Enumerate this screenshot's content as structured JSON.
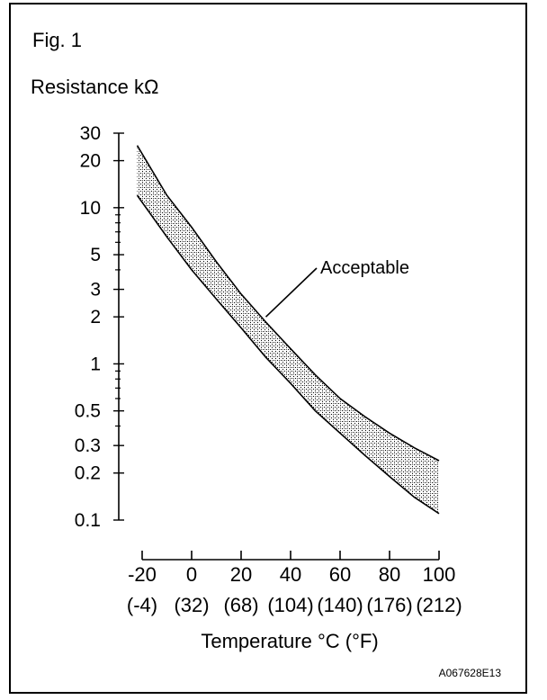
{
  "chart_data": {
    "type": "area",
    "fig_label": "Fig. 1",
    "ylabel": "Resistance kΩ",
    "xlabel": "Temperature °C (°F)",
    "yscale": "log",
    "ylim": [
      0.1,
      30
    ],
    "xlim": [
      -20,
      100
    ],
    "y_ticks": [
      30,
      20,
      10,
      5,
      3,
      2,
      1,
      0.5,
      0.3,
      0.2,
      0.1
    ],
    "y_tick_labels": [
      "30",
      "20",
      "10",
      "5",
      "3",
      "2",
      "1",
      "0.5",
      "0.3",
      "0.2",
      "0.1"
    ],
    "y_minor_ticks": [
      0.4,
      0.6,
      0.7,
      0.8,
      0.9,
      4,
      6,
      7,
      8,
      9
    ],
    "x_ticks": [
      -20,
      0,
      20,
      40,
      60,
      80,
      100
    ],
    "x_tick_labels": [
      "-20",
      "0",
      "20",
      "40",
      "60",
      "80",
      "100"
    ],
    "x_tick_labels_f": [
      "(-4)",
      "(32)",
      "(68)",
      "(104)",
      "(140)",
      "(176)",
      "(212)"
    ],
    "band_label": "Acceptable",
    "band_label_point": [
      30,
      2.0
    ],
    "series": [
      {
        "role": "upper",
        "x": [
          -22,
          -10,
          0,
          10,
          20,
          30,
          40,
          50,
          60,
          70,
          80,
          90,
          100
        ],
        "y": [
          25,
          12,
          7.5,
          4.5,
          2.8,
          1.85,
          1.25,
          0.85,
          0.6,
          0.46,
          0.36,
          0.29,
          0.24
        ]
      },
      {
        "role": "lower",
        "x": [
          -22,
          -10,
          0,
          10,
          20,
          30,
          40,
          50,
          60,
          70,
          80,
          90,
          100
        ],
        "y": [
          12,
          6.5,
          4.0,
          2.6,
          1.7,
          1.1,
          0.75,
          0.5,
          0.36,
          0.26,
          0.19,
          0.14,
          0.11
        ]
      }
    ],
    "grid": false,
    "legend": "none"
  },
  "footer": {
    "figure_code": "A067628E13"
  }
}
